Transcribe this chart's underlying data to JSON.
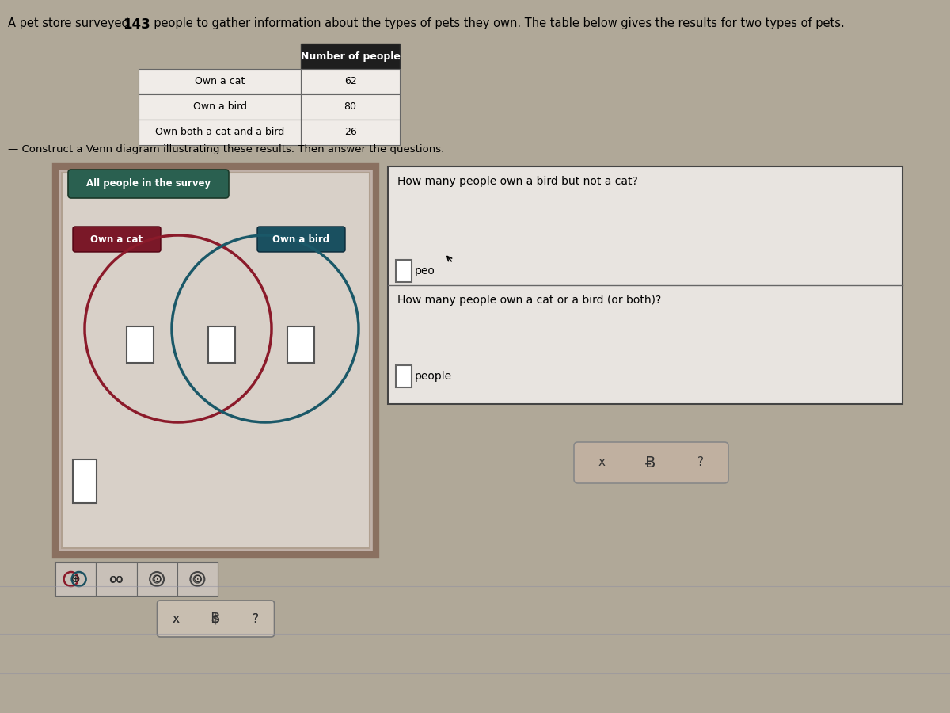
{
  "total_surveyed": 143,
  "own_cat": 62,
  "own_bird": 80,
  "own_both": 26,
  "title_line": "A pet store surveyed 143  people to gather information about the types of pets they own. The table below gives the results for two types of pets.",
  "title_prefix": "A pet store surveyed ",
  "title_num": "143",
  "title_suffix": "  people to gather information about the types of pets they own. The table below gives the results for two types of pets.",
  "table_header": "Number of people",
  "table_rows": [
    [
      "Own a cat",
      "62"
    ],
    [
      "Own a bird",
      "80"
    ],
    [
      "Own both a cat and a bird",
      "26"
    ]
  ],
  "construct_text": "Construct a Venn diagram illustrating these results. Then answer the questions.",
  "venn_label": "All people in the survey",
  "cat_label": "Own a cat",
  "bird_label": "Own a bird",
  "q1": "How many people own a bird but not a cat?",
  "q1_text": "peo",
  "q2": "How many people own a cat or a bird (or both)?",
  "q2_text": "people",
  "bg_color": "#a8a09898",
  "page_bg": "#b0a898",
  "venn_outer_bg": "#c0b0a8",
  "venn_inner_bg": "#d8d0c8",
  "cat_circle_color": "#8b1a2a",
  "bird_circle_color": "#1a5868",
  "cat_label_bg": "#7a1828",
  "bird_label_bg": "#1a5060",
  "survey_label_bg": "#2a6050",
  "question_box_bg": "#e8e4e0",
  "question_box_border": "#444444",
  "btn_box_bg": "#c0b0a0",
  "toolbar_bg": "#c8c0b8"
}
